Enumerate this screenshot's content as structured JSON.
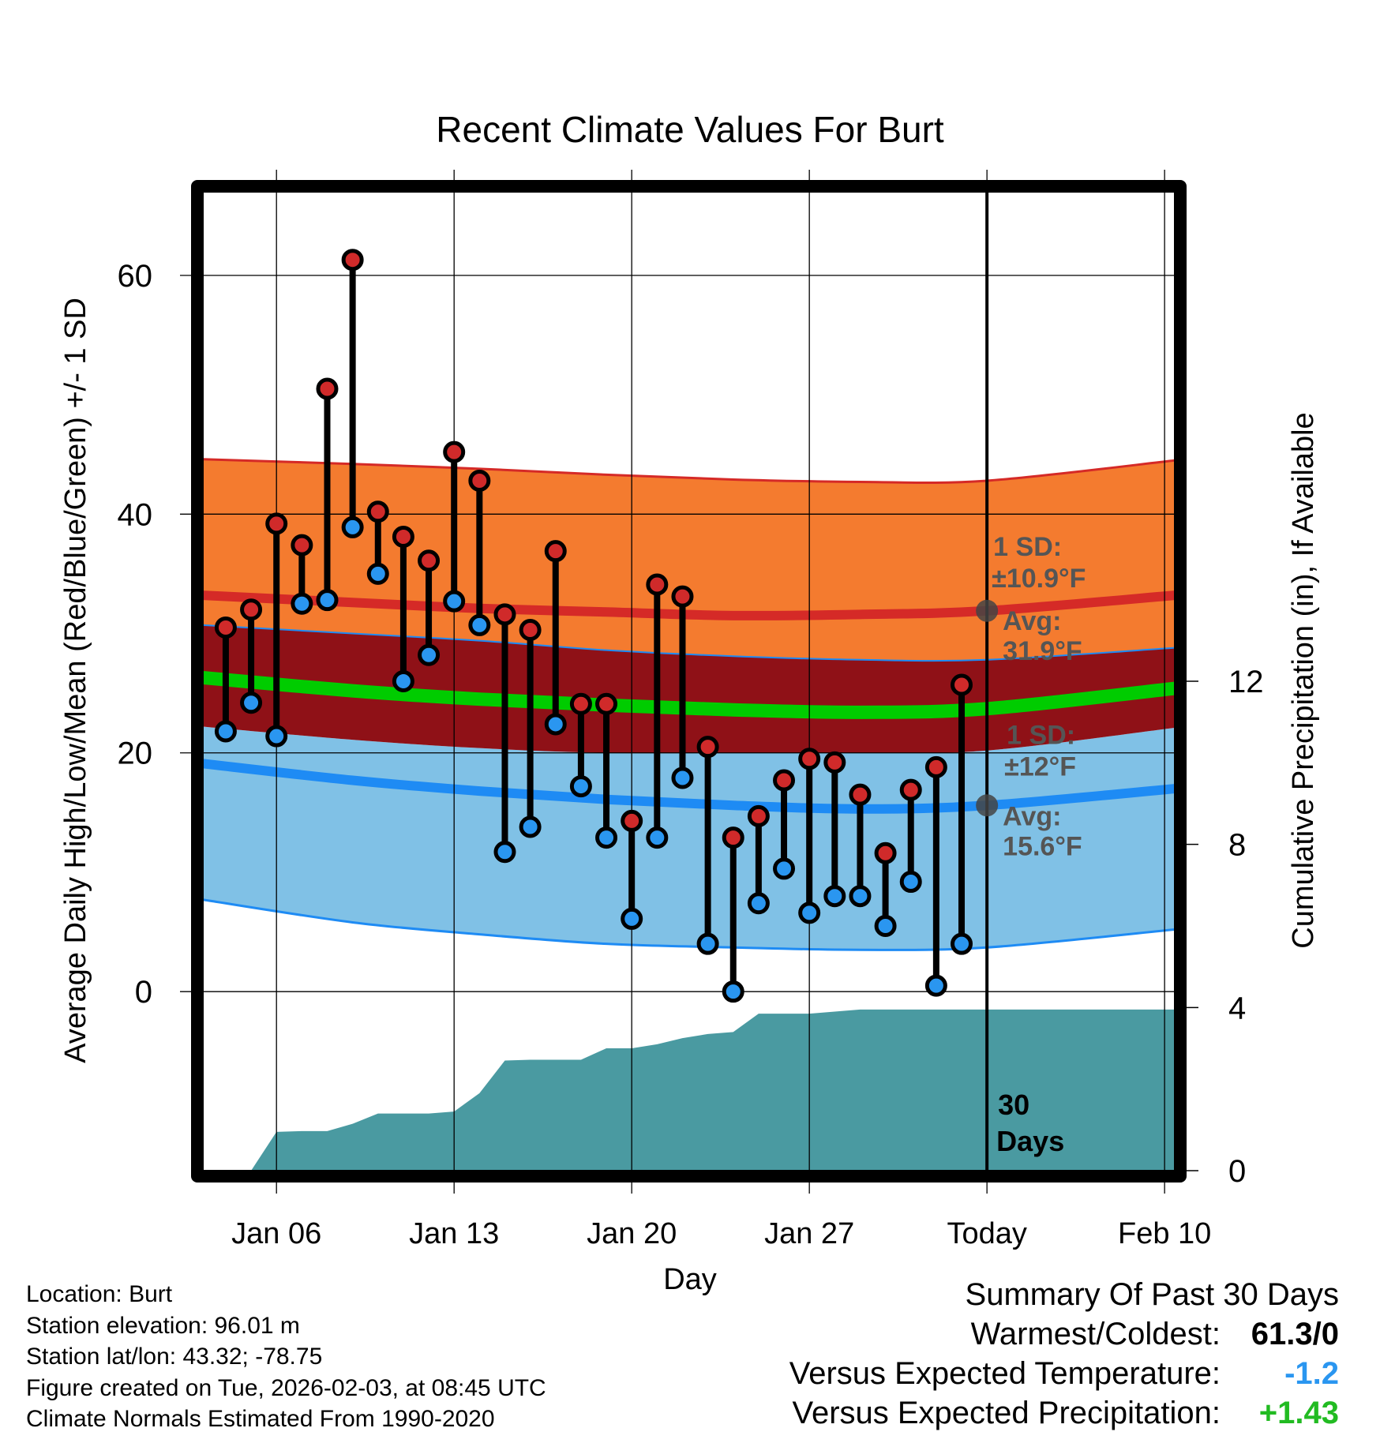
{
  "chart_data": {
    "type": "line",
    "title": "Recent Climate Values For Burt",
    "xlabel": "Day",
    "ylabel": "Average Daily High/Low/Mean (Red/Blue/Green) +/- 1 SD",
    "y2label": "Cumulative Precipitation (in), If Available",
    "ylim": [
      -15,
      67
    ],
    "y2lim": [
      0,
      24
    ],
    "xlim": [
      -0.9,
      37.4
    ],
    "x_tick_positions": [
      2,
      9,
      16,
      23,
      30,
      37
    ],
    "x_tick_labels": [
      "Jan 06",
      "Jan 13",
      "Jan 20",
      "Jan 27",
      "Today",
      "Feb 10"
    ],
    "y_ticks": [
      0,
      20,
      40,
      60
    ],
    "y2_ticks": [
      0,
      4,
      8,
      12
    ],
    "today_index": 30,
    "highs": [
      30.5,
      32,
      39.2,
      37.4,
      50.5,
      61.3,
      40.2,
      38.1,
      36.1,
      45.2,
      42.8,
      31.6,
      30.3,
      36.9,
      24.1,
      24.1,
      14.3,
      34.1,
      33.1,
      20.5,
      12.9,
      14.7,
      17.7,
      19.5,
      19.2,
      16.5,
      11.6,
      16.9,
      18.8,
      25.7
    ],
    "lows": [
      21.8,
      24.2,
      21.4,
      32.5,
      32.8,
      38.9,
      35,
      26,
      28.2,
      32.7,
      30.7,
      11.7,
      13.8,
      22.4,
      17.2,
      12.9,
      6.1,
      12.9,
      17.9,
      4.0,
      0,
      7.4,
      10.3,
      6.6,
      8,
      8,
      5.5,
      9.2,
      0.5,
      4.0
    ],
    "normals": {
      "x": [
        -0.9,
        5,
        10,
        15,
        20,
        25,
        30,
        37.4
      ],
      "high_mean": [
        33.2,
        32.6,
        32.1,
        31.8,
        31.5,
        31.6,
        31.9,
        33.2
      ],
      "high_upper": [
        44.6,
        44.2,
        43.8,
        43.3,
        42.9,
        42.7,
        42.8,
        44.5
      ],
      "high_lower": [
        30.7,
        30,
        29.4,
        28.6,
        28.1,
        27.8,
        27.8,
        28.8
      ],
      "mean": [
        26.3,
        25.2,
        24.5,
        24.0,
        23.6,
        23.4,
        23.7,
        25.4
      ],
      "mean_upper": [
        27.5,
        26.4,
        25.7,
        25.2,
        24.8,
        24.6,
        24.9,
        26.6
      ],
      "mean_lower": [
        25.1,
        24.0,
        23.3,
        22.8,
        22.4,
        22.2,
        22.5,
        24.2
      ],
      "low_mean": [
        19.1,
        17.7,
        16.8,
        16.1,
        15.6,
        15.3,
        15.6,
        17.0
      ],
      "low_upper": [
        22.2,
        21.1,
        20.4,
        20.0,
        20.0,
        20.0,
        20.2,
        22.1
      ],
      "low_lower": [
        7.7,
        5.8,
        4.8,
        4.0,
        3.7,
        3.5,
        3.7,
        5.2
      ]
    },
    "precip": {
      "x": [
        -0.9,
        1,
        2,
        3,
        4,
        5,
        6,
        7,
        8,
        9,
        10,
        11,
        12,
        13,
        14,
        15,
        16,
        17,
        18,
        19,
        20,
        21,
        22,
        23,
        24,
        25,
        26,
        27,
        28,
        29,
        30,
        37.4
      ],
      "y": [
        0,
        0,
        0.95,
        0.97,
        0.97,
        1.15,
        1.4,
        1.4,
        1.4,
        1.45,
        1.9,
        2.7,
        2.72,
        2.72,
        2.72,
        3.0,
        3.0,
        3.1,
        3.25,
        3.35,
        3.4,
        3.85,
        3.85,
        3.85,
        3.9,
        3.95,
        3.95,
        3.95,
        3.95,
        3.95,
        3.95,
        3.95
      ]
    },
    "annotations": {
      "high_sd_label": "1 SD:",
      "high_sd_value": "±10.9°F",
      "high_avg_label": "Avg:",
      "high_avg_value": "31.9°F",
      "low_sd_label": "1 SD:",
      "low_sd_value": "±12°F",
      "low_avg_label": "Avg:",
      "low_avg_value": "15.6°F",
      "days_num": "30",
      "days_word": "Days"
    },
    "colors": {
      "high_band": "#f47b2f",
      "overlap_band": "#8f1117",
      "low_band": "#80c1e6",
      "high_line": "#d52a27",
      "low_line": "#1e8bf4",
      "mean_line": "#00cc00",
      "precip": "#4a9aa1",
      "high_dot": "#d02a2a",
      "low_dot": "#2a96f0"
    }
  },
  "info": {
    "location": "Location: Burt",
    "elevation": "Station elevation: 96.01 m",
    "latlon": "Station lat/lon: 43.32; -78.75",
    "created": "Figure created on Tue, 2026-02-03, at 08:45 UTC",
    "normals": "Climate Normals Estimated From 1990-2020"
  },
  "summary": {
    "title": "Summary Of Past 30 Days",
    "warm_cold_label": "Warmest/Coldest:",
    "warm_cold_value": "61.3/0",
    "temp_label": "Versus Expected Temperature:",
    "temp_value": "-1.2",
    "temp_color": "#2a96f0",
    "precip_label": "Versus Expected Precipitation:",
    "precip_value": "+1.43",
    "precip_color": "#22bb22"
  }
}
